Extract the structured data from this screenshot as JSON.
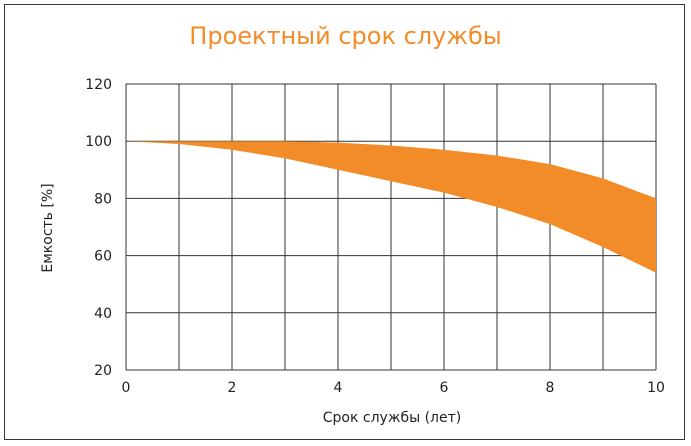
{
  "chart_data": {
    "type": "area",
    "title": "Проектный срок службы",
    "xlabel": "Срок службы (лет)",
    "ylabel": "Емкость [%]",
    "xlim": [
      0,
      10
    ],
    "ylim": [
      20,
      120
    ],
    "x_ticks": [
      0,
      2,
      4,
      6,
      8,
      10
    ],
    "y_ticks": [
      20,
      40,
      60,
      80,
      100,
      120
    ],
    "x_grid_step": 1,
    "grid": true,
    "band_color": "#f28c28",
    "band": {
      "x": [
        0,
        1,
        2,
        3,
        4,
        5,
        6,
        7,
        8,
        9,
        10
      ],
      "upper": [
        100,
        100,
        100,
        100,
        99.5,
        98.5,
        97,
        95,
        92,
        87,
        80
      ],
      "lower": [
        100,
        99,
        97,
        94,
        90,
        86,
        82,
        77,
        71,
        63,
        54
      ]
    }
  }
}
